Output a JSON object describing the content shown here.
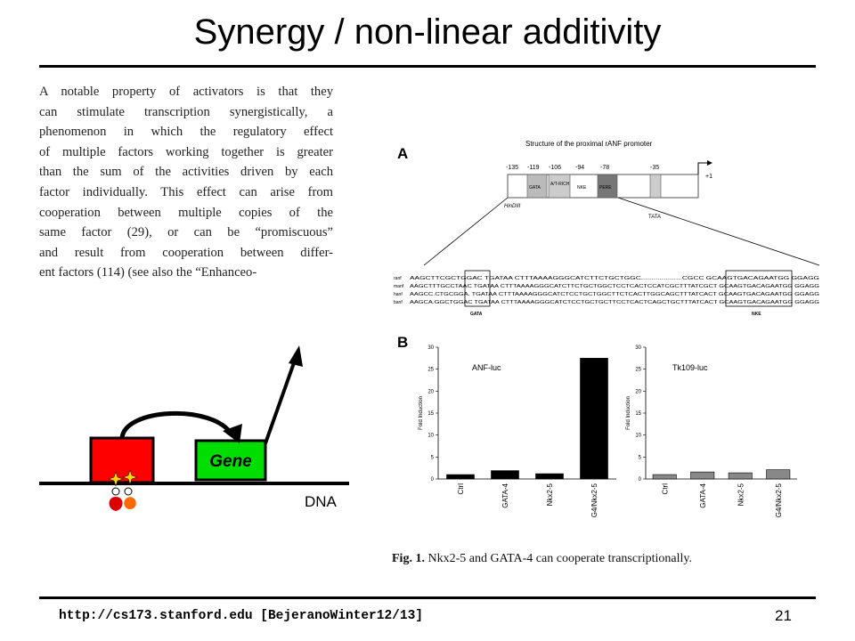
{
  "slide": {
    "title": "Synergy / non-linear additivity",
    "footer_url": "http://cs173.stanford.edu [BejeranoWinter12/13]",
    "page_number": "21"
  },
  "passage": {
    "lines": [
      "A notable property of activators is that they",
      "can stimulate transcription synergistically, a",
      "phenomenon in which the regulatory effect",
      "of multiple factors working together is greater",
      "than the sum of the activities driven by each",
      "factor individually. This effect can arise from",
      "cooperation between multiple copies of the",
      "same factor (29), or can be “promiscuous”",
      "and result from cooperation between differ-",
      "ent factors (114) (see also the “Enhanceo-"
    ]
  },
  "cartoon": {
    "gene_label": "Gene",
    "dna_label": "DNA",
    "colors": {
      "factor_box": "#ff0000",
      "gene_box": "#00cc00",
      "star": "#ffd700"
    }
  },
  "figure": {
    "panel_a": {
      "letter": "A",
      "title": "Structure of the proximal rANF promoter",
      "positions": [
        "-135",
        "-119",
        "-106",
        "-94",
        "-78",
        "-35",
        "+1"
      ],
      "elements": [
        "GATA",
        "A/T-RICH",
        "NKE",
        "PERE",
        "TATA"
      ],
      "site_label": "HinDIII",
      "species": [
        "ranf",
        "manf",
        "hanf",
        "banf"
      ],
      "sequences": [
        "AAGCTTCGCTGGAC TGATAA CTTTAAAAGGGCATCTTCTGCTGGC....................CGCC GCAAGTGACAGAATGG GGAGG",
        "AAGCTTTGCCTAAC TGATAA CTTTAAAAGGGCATCTTCTGCTGGCTCCTCACTCCATCGCTTTATCGCT GCAAGTGACAGAATGG GGAGG",
        "AAGCC.CTGCGGA. TGATAA CTTTAAAAGGGCATCTCCTGCTGGCTTCTCACTTGGCAGCTTTATCACT GCAAGTGACAGAATGG GGAGG",
        "AAGCA.GGCTGGAC TGATAA CTTTAAAAGGGCATCTCCTGCTGCTTCCTCACTCAGCTGCTTTATCACT GCAAGTGACAGAATGG GGAGG"
      ],
      "box_labels": [
        "GATA",
        "NKE"
      ]
    },
    "panel_b": {
      "letter": "B",
      "caption_bold": "Fig. 1.",
      "caption_text": " Nkx2-5 and GATA-4 can cooperate transcriptionally."
    }
  },
  "chart_data": [
    {
      "type": "bar",
      "title": "ANF-luc",
      "xlabel": "",
      "ylabel": "Fold Induction",
      "categories": [
        "Ctrl",
        "GATA-4",
        "Nkx2-5",
        "G4/Nkx2-5"
      ],
      "values": [
        1,
        1.9,
        1.2,
        27.5
      ],
      "ylim": [
        0,
        30
      ],
      "yticks": [
        0,
        5,
        10,
        15,
        20,
        25,
        30
      ],
      "bar_color": "#000000",
      "grid": false
    },
    {
      "type": "bar",
      "title": "Tk109-luc",
      "xlabel": "",
      "ylabel": "Fold Induction",
      "categories": [
        "Ctrl",
        "GATA-4",
        "Nkx2-5",
        "G4/Nkx2-5"
      ],
      "values": [
        1,
        1.6,
        1.4,
        2.1
      ],
      "ylim": [
        0,
        30
      ],
      "yticks": [
        0,
        5,
        10,
        15,
        20,
        25,
        30
      ],
      "bar_color": "#888888",
      "grid": false
    }
  ]
}
